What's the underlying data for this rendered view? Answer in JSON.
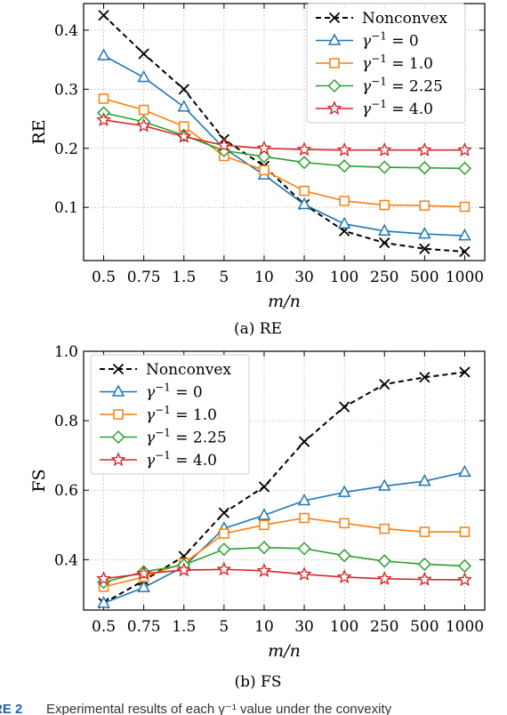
{
  "chart_data": [
    {
      "type": "line",
      "caption": "(a) RE",
      "ylabel": "RE",
      "xlabel": "m/n",
      "categories": [
        "0.5",
        "0.75",
        "1.5",
        "5",
        "10",
        "30",
        "100",
        "250",
        "500",
        "1000"
      ],
      "ylim": [
        0.01,
        0.445
      ],
      "yticks": [
        "0.1",
        "0.2",
        "0.3",
        "0.4"
      ],
      "grid": true,
      "legend_position": "top-right",
      "series": [
        {
          "name": "Nonconvex",
          "values": [
            0.425,
            0.36,
            0.3,
            0.215,
            0.17,
            0.105,
            0.06,
            0.04,
            0.03,
            0.025
          ]
        },
        {
          "name": "γ⁻¹ = 0",
          "values": [
            0.357,
            0.32,
            0.27,
            0.2,
            0.155,
            0.105,
            0.072,
            0.06,
            0.055,
            0.052
          ]
        },
        {
          "name": "γ⁻¹ = 1.0",
          "values": [
            0.284,
            0.265,
            0.237,
            0.187,
            0.163,
            0.128,
            0.111,
            0.104,
            0.103,
            0.101
          ]
        },
        {
          "name": "γ⁻¹ = 2.25",
          "values": [
            0.26,
            0.245,
            0.222,
            0.196,
            0.186,
            0.176,
            0.17,
            0.168,
            0.167,
            0.166
          ]
        },
        {
          "name": "γ⁻¹ = 4.0",
          "values": [
            0.248,
            0.238,
            0.22,
            0.205,
            0.2,
            0.198,
            0.197,
            0.197,
            0.197,
            0.197
          ]
        }
      ]
    },
    {
      "type": "line",
      "caption": "(b) FS",
      "ylabel": "FS",
      "xlabel": "m/n",
      "categories": [
        "0.5",
        "0.75",
        "1.5",
        "5",
        "10",
        "30",
        "100",
        "250",
        "500",
        "1000"
      ],
      "ylim": [
        0.255,
        1.0
      ],
      "yticks": [
        "0.4",
        "0.6",
        "0.8",
        "1.0"
      ],
      "grid": true,
      "legend_position": "top-left",
      "series": [
        {
          "name": "Nonconvex",
          "values": [
            0.275,
            0.34,
            0.41,
            0.535,
            0.61,
            0.74,
            0.84,
            0.905,
            0.925,
            0.94
          ]
        },
        {
          "name": "γ⁻¹ = 0",
          "values": [
            0.275,
            0.32,
            0.38,
            0.49,
            0.528,
            0.57,
            0.594,
            0.612,
            0.626,
            0.652
          ]
        },
        {
          "name": "γ⁻¹ = 1.0",
          "values": [
            0.322,
            0.35,
            0.39,
            0.475,
            0.5,
            0.52,
            0.505,
            0.489,
            0.48,
            0.48
          ]
        },
        {
          "name": "γ⁻¹ = 2.25",
          "values": [
            0.335,
            0.365,
            0.385,
            0.43,
            0.435,
            0.432,
            0.412,
            0.396,
            0.387,
            0.382
          ]
        },
        {
          "name": "γ⁻¹ = 4.0",
          "values": [
            0.345,
            0.36,
            0.37,
            0.372,
            0.368,
            0.358,
            0.35,
            0.345,
            0.343,
            0.342
          ]
        }
      ]
    }
  ],
  "styles": {
    "series_colors": [
      "#000000",
      "#1f77b4",
      "#ff7f0e",
      "#2ca02c",
      "#d62728"
    ],
    "series_markers": [
      "x-icon",
      "triangle-icon",
      "square-icon",
      "diamond-icon",
      "star-icon"
    ]
  },
  "figure_caption": {
    "label": "RE 2",
    "text": "Experimental results of each γ⁻¹ value under the convexity"
  }
}
